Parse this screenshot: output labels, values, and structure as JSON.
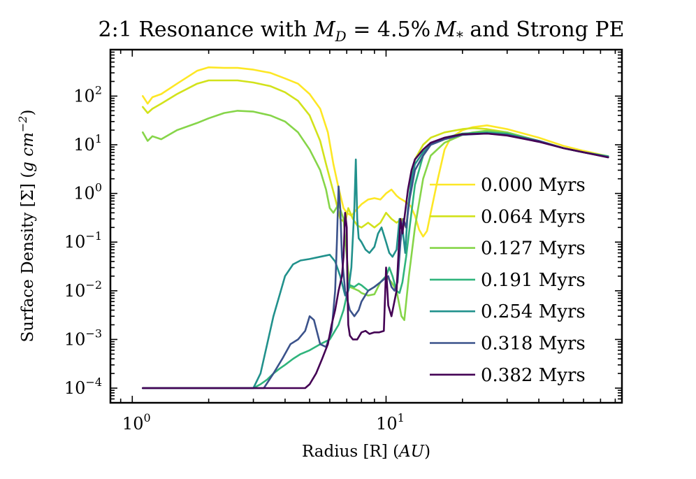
{
  "chart_data": {
    "type": "line",
    "title": "2:1 Resonance with M_D = 4.5% M_* and Strong PE",
    "title_parts": {
      "prefix": "2:1 Resonance with ",
      "md_main": "M",
      "md_sub": "D",
      "eq": " = 4.5%",
      "ms_main": "M",
      "ms_sub": "*",
      "suffix": " and Strong PE"
    },
    "xlabel": "Radius [R]  (AU)",
    "xlabel_parts": {
      "plain": "Radius [R]  (",
      "italic": "AU",
      "close": ")"
    },
    "ylabel": "Surface Density [Σ] (g cm^-2)",
    "ylabel_parts": {
      "plain": "Surface Density [Σ] (",
      "unit": "g cm",
      "exp": "−2",
      "close": ")"
    },
    "xscale": "log",
    "yscale": "log",
    "xlim": [
      0.82,
      85
    ],
    "ylim": [
      5e-05,
      900
    ],
    "xticks": [
      {
        "value": 1,
        "base": "10",
        "exp": "0"
      },
      {
        "value": 10,
        "base": "10",
        "exp": "1"
      }
    ],
    "yticks": [
      {
        "value": 0.0001,
        "base": "10",
        "exp": "−4"
      },
      {
        "value": 0.001,
        "base": "10",
        "exp": "−3"
      },
      {
        "value": 0.01,
        "base": "10",
        "exp": "−2"
      },
      {
        "value": 0.1,
        "base": "10",
        "exp": "−1"
      },
      {
        "value": 1,
        "base": "10",
        "exp": "0"
      },
      {
        "value": 10,
        "base": "10",
        "exp": "1"
      },
      {
        "value": 100,
        "base": "10",
        "exp": "2"
      }
    ],
    "legend_position": "right",
    "series": [
      {
        "name": "0.000 Myrs",
        "color": "#fde725",
        "x": [
          1.1,
          1.15,
          1.2,
          1.3,
          1.5,
          1.8,
          2.0,
          2.3,
          2.6,
          3.0,
          3.5,
          4.0,
          4.5,
          5.0,
          5.5,
          5.9,
          6.2,
          6.5,
          6.8,
          7.0,
          7.3,
          7.6,
          8.0,
          8.5,
          9.0,
          9.5,
          10.0,
          10.5,
          11.0,
          11.3,
          11.8,
          12.5,
          13.0,
          13.5,
          14.0,
          14.5,
          15.0,
          16.0,
          17.0,
          18.0,
          20.0,
          22.0,
          25.0,
          30.0,
          40.0,
          50.0,
          60.0,
          75.0
        ],
        "y": [
          100,
          70,
          95,
          110,
          180,
          330,
          390,
          380,
          380,
          350,
          300,
          230,
          180,
          110,
          55,
          18,
          4,
          1.3,
          0.5,
          0.4,
          0.35,
          0.45,
          0.6,
          0.75,
          0.8,
          0.75,
          1.0,
          1.2,
          0.9,
          0.8,
          0.7,
          0.55,
          0.35,
          0.18,
          0.13,
          0.17,
          0.4,
          2,
          8,
          14,
          20,
          23,
          25,
          21,
          14,
          9.5,
          7.5,
          5.8
        ]
      },
      {
        "name": "0.064 Myrs",
        "color": "#d2e21b",
        "x": [
          1.1,
          1.15,
          1.2,
          1.3,
          1.5,
          1.8,
          2.0,
          2.3,
          2.6,
          3.0,
          3.5,
          4.0,
          4.5,
          5.0,
          5.5,
          5.8,
          6.1,
          6.3,
          6.6,
          6.9,
          7.1,
          7.4,
          7.7,
          8.0,
          8.5,
          9.0,
          9.5,
          10.0,
          10.5,
          11.0,
          11.5,
          12.0,
          12.5,
          13.0,
          14.0,
          15.0,
          17.0,
          20.0,
          22.0,
          25.0,
          30.0,
          40.0,
          50.0,
          60.0,
          75.0
        ],
        "y": [
          60,
          45,
          55,
          70,
          110,
          180,
          210,
          210,
          210,
          190,
          160,
          120,
          80,
          40,
          12,
          4,
          1.5,
          0.8,
          0.3,
          0.25,
          0.5,
          0.3,
          0.22,
          0.2,
          0.25,
          0.2,
          0.25,
          0.4,
          0.3,
          0.25,
          0.3,
          0.2,
          1.5,
          5,
          10,
          14,
          18,
          21,
          22,
          21,
          18,
          12,
          8.5,
          7,
          5.7
        ]
      },
      {
        "name": "0.127 Myrs",
        "color": "#86d549",
        "x": [
          1.1,
          1.15,
          1.2,
          1.3,
          1.5,
          1.8,
          2.0,
          2.3,
          2.6,
          3.0,
          3.5,
          4.0,
          4.5,
          5.0,
          5.5,
          5.8,
          6.0,
          6.2,
          6.5,
          6.8,
          7.0,
          7.2,
          7.5,
          7.8,
          8.0,
          8.5,
          9.0,
          9.5,
          10.0,
          10.5,
          11.0,
          11.5,
          11.8,
          12.3,
          13.0,
          14.0,
          15.0,
          17.0,
          20.0,
          22.0,
          25.0,
          30.0,
          40.0,
          50.0,
          60.0,
          75.0
        ],
        "y": [
          18,
          12,
          15,
          13,
          20,
          28,
          35,
          45,
          50,
          48,
          40,
          30,
          18,
          8,
          3,
          1.2,
          0.5,
          0.4,
          0.6,
          0.3,
          0.05,
          0.012,
          0.011,
          0.01,
          0.009,
          0.008,
          0.0085,
          0.015,
          0.02,
          0.015,
          0.01,
          0.003,
          0.0025,
          0.02,
          0.2,
          2,
          6,
          11,
          16,
          18,
          19.5,
          18,
          12,
          8.5,
          7,
          5.8
        ]
      },
      {
        "name": "0.191 Myrs",
        "color": "#2fb47c",
        "x": [
          1.1,
          2.0,
          3.0,
          3.2,
          3.4,
          3.6,
          3.8,
          4.0,
          4.3,
          4.6,
          5.0,
          5.5,
          6.0,
          6.5,
          6.8,
          7.0,
          7.2,
          7.5,
          7.8,
          8.0,
          8.5,
          9.0,
          9.5,
          10.0,
          10.3,
          10.6,
          11.0,
          11.3,
          11.6,
          12.0,
          12.5,
          13.0,
          14.0,
          15.0,
          17.0,
          20.0,
          25.0,
          30.0,
          40.0,
          50.0,
          60.0,
          75.0
        ],
        "y": [
          0.0001,
          0.0001,
          0.0001,
          0.00012,
          0.00015,
          0.0002,
          0.00025,
          0.0003,
          0.0004,
          0.0005,
          0.0006,
          0.0008,
          0.001,
          0.002,
          0.004,
          0.008,
          0.013,
          0.012,
          0.014,
          0.013,
          0.01,
          0.012,
          0.015,
          0.02,
          0.03,
          0.02,
          0.01,
          0.009,
          0.015,
          0.05,
          0.3,
          1.5,
          6,
          10,
          14,
          17,
          18,
          17,
          12,
          8.5,
          7,
          5.8
        ]
      },
      {
        "name": "0.254 Myrs",
        "color": "#21918c",
        "x": [
          1.1,
          2.0,
          3.0,
          3.2,
          3.4,
          3.6,
          3.8,
          4.0,
          4.3,
          4.6,
          5.0,
          5.5,
          6.0,
          6.3,
          6.6,
          6.9,
          7.1,
          7.3,
          7.5,
          7.6,
          7.7,
          7.8,
          8.0,
          8.3,
          8.6,
          9.0,
          9.3,
          9.6,
          10.0,
          10.3,
          10.6,
          11.0,
          11.3,
          11.6,
          11.9,
          12.2,
          12.6,
          13.0,
          14.0,
          15.0,
          17.0,
          20.0,
          25.0,
          30.0,
          40.0,
          50.0,
          60.0,
          75.0
        ],
        "y": [
          0.0001,
          0.0001,
          0.0001,
          0.0002,
          0.0008,
          0.003,
          0.008,
          0.02,
          0.035,
          0.042,
          0.045,
          0.05,
          0.055,
          0.04,
          0.02,
          0.008,
          0.01,
          0.03,
          0.5,
          5,
          0.3,
          0.12,
          0.1,
          0.07,
          0.06,
          0.08,
          0.15,
          0.2,
          0.1,
          0.06,
          0.05,
          0.07,
          0.3,
          0.2,
          0.06,
          0.5,
          2,
          4,
          7,
          10,
          13,
          16,
          17.5,
          16,
          12,
          8.5,
          7,
          5.7
        ]
      },
      {
        "name": "0.318 Myrs",
        "color": "#3b528b",
        "x": [
          1.1,
          2.0,
          3.0,
          3.3,
          3.6,
          3.9,
          4.2,
          4.5,
          4.8,
          5.0,
          5.2,
          5.5,
          5.8,
          6.1,
          6.3,
          6.4,
          6.5,
          6.6,
          6.7,
          6.9,
          7.2,
          7.5,
          7.8,
          8.0,
          8.5,
          9.0,
          9.5,
          9.9,
          10.2,
          10.5,
          10.8,
          11.1,
          11.4,
          11.7,
          12.0,
          12.4,
          13.0,
          14.0,
          15.0,
          17.0,
          20.0,
          25.0,
          30.0,
          40.0,
          50.0,
          60.0,
          75.0
        ],
        "y": [
          0.0001,
          0.0001,
          0.0001,
          0.0001,
          0.0002,
          0.0004,
          0.0008,
          0.001,
          0.0015,
          0.003,
          0.0025,
          0.0008,
          0.0007,
          0.0015,
          0.01,
          0.1,
          1.4,
          0.5,
          0.05,
          0.01,
          0.004,
          0.003,
          0.004,
          0.006,
          0.01,
          0.012,
          0.015,
          0.018,
          0.02,
          0.012,
          0.01,
          0.015,
          0.1,
          0.3,
          0.2,
          0.8,
          3,
          6,
          10,
          13,
          16,
          17,
          16,
          12,
          8.5,
          7,
          5.6
        ]
      },
      {
        "name": "0.382 Myrs",
        "color": "#440154",
        "x": [
          1.1,
          2.0,
          3.0,
          4.0,
          4.5,
          4.8,
          5.0,
          5.3,
          5.6,
          5.9,
          6.1,
          6.3,
          6.5,
          6.7,
          6.8,
          6.9,
          7.0,
          7.05,
          7.1,
          7.2,
          7.4,
          7.7,
          8.0,
          8.3,
          8.6,
          9.0,
          9.4,
          9.8,
          10.0,
          10.2,
          10.5,
          11.0,
          11.2,
          11.4,
          11.6,
          11.8,
          12.2,
          12.6,
          13.0,
          14.0,
          15.0,
          17.0,
          20.0,
          25.0,
          30.0,
          40.0,
          50.0,
          60.0,
          75.0
        ],
        "y": [
          0.0001,
          0.0001,
          0.0001,
          0.0001,
          0.0001,
          0.0001,
          0.00012,
          0.0002,
          0.0004,
          0.0008,
          0.002,
          0.004,
          0.01,
          0.02,
          0.05,
          0.4,
          0.2,
          0.01,
          0.002,
          0.0012,
          0.001,
          0.001,
          0.0014,
          0.0015,
          0.0013,
          0.0014,
          0.0014,
          0.0015,
          0.03,
          0.005,
          0.003,
          0.01,
          0.06,
          0.3,
          0.15,
          0.3,
          1.2,
          3,
          5,
          8,
          11,
          14,
          16.5,
          17,
          15.5,
          11.5,
          8.5,
          7,
          5.5
        ]
      }
    ]
  }
}
